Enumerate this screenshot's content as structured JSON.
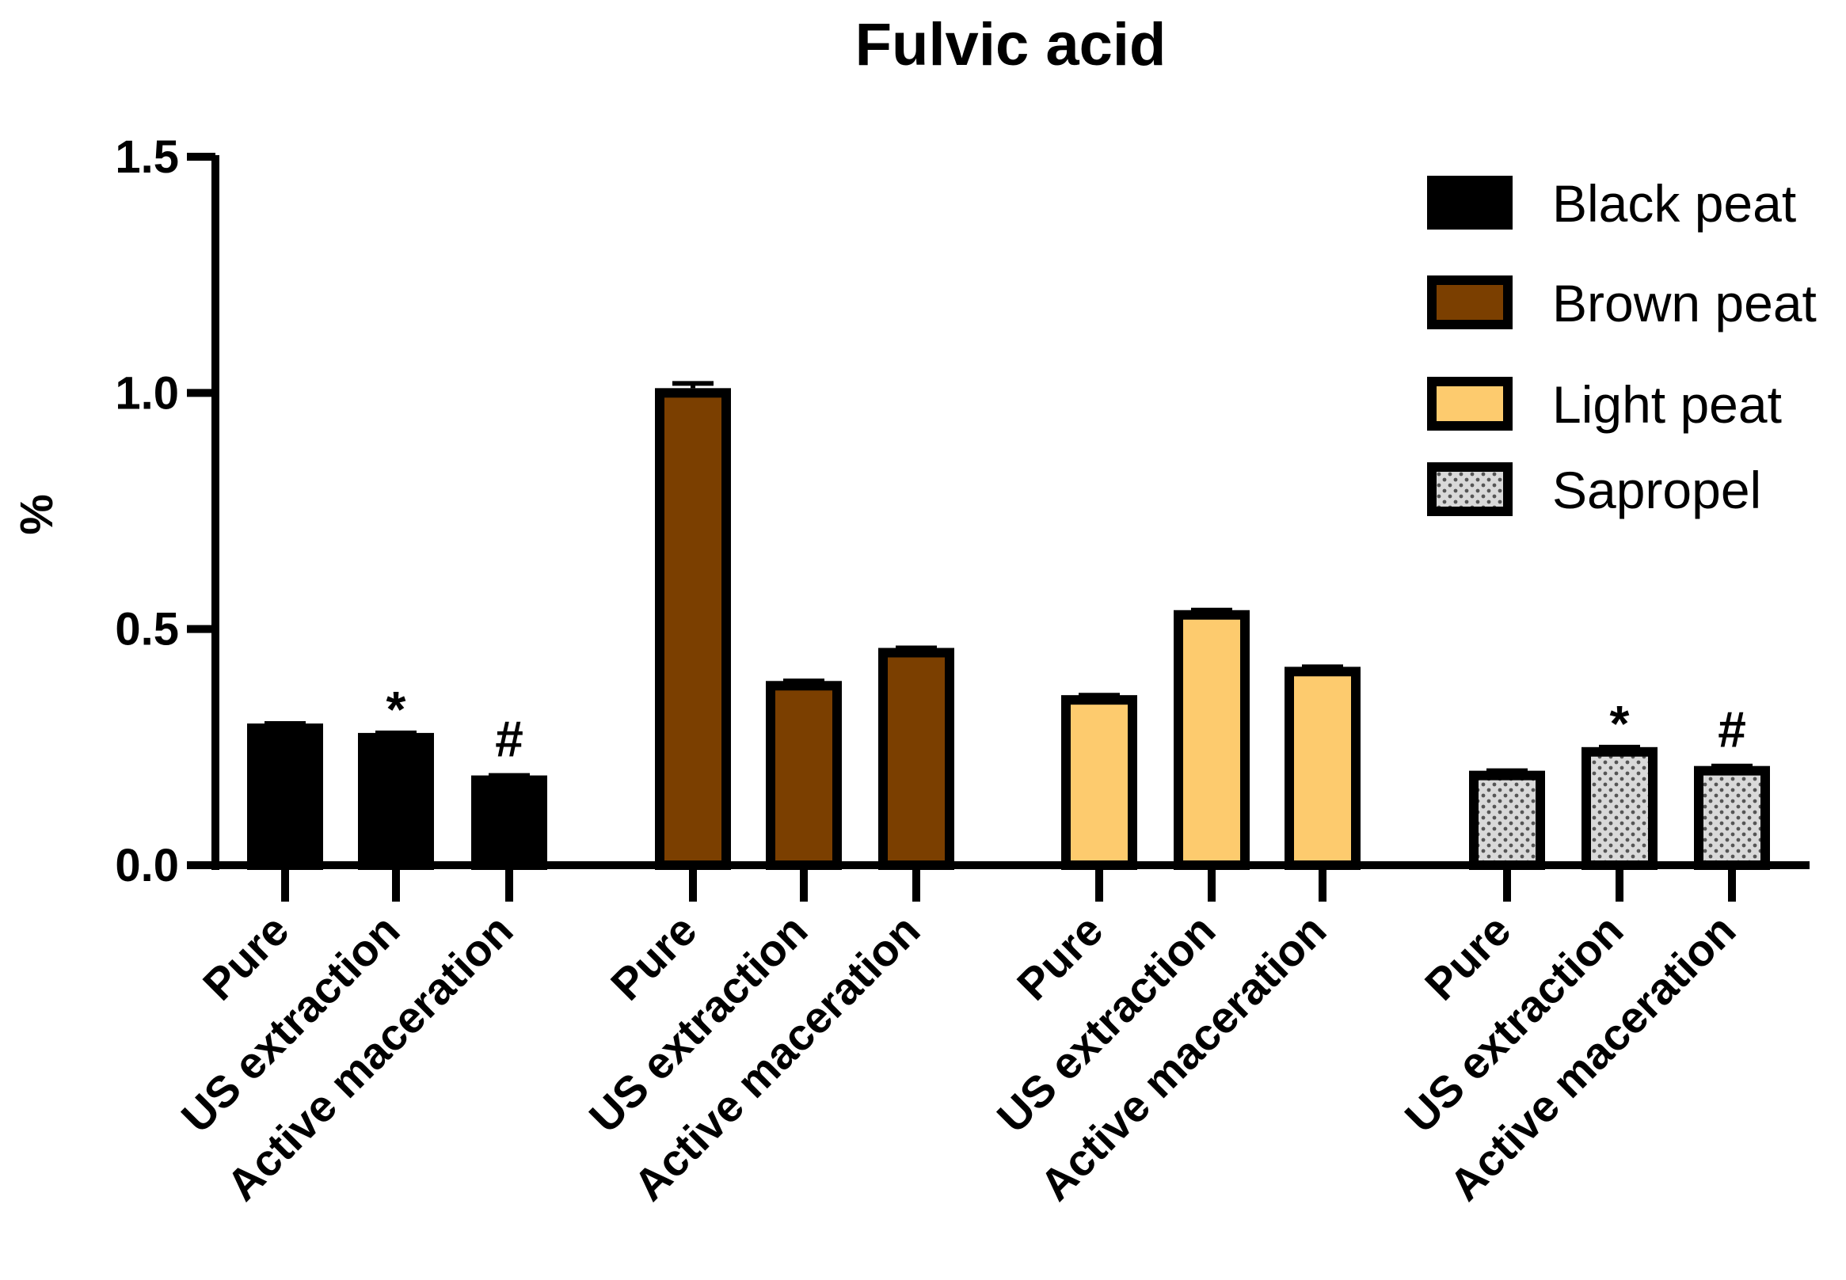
{
  "chart_data": {
    "type": "bar",
    "title": "Fulvic acid",
    "ylabel": "%",
    "xlabel": "",
    "ylim": [
      0,
      1.5
    ],
    "yticks": [
      "0.0",
      "0.5",
      "1.0",
      "1.5"
    ],
    "ytick_values": [
      0,
      0.5,
      1.0,
      1.5
    ],
    "legend_position": "top-right",
    "categories": [
      "Pure",
      "US extraction",
      "Active maceration"
    ],
    "series": [
      {
        "name": "Black peat",
        "color": "#000000",
        "pattern": "solid",
        "values": [
          0.29,
          0.27,
          0.18
        ],
        "errors": [
          0.01,
          0.01,
          0.01
        ],
        "annotations": [
          "",
          "*",
          "#"
        ]
      },
      {
        "name": "Brown peat",
        "color": "#7B3F00",
        "pattern": "solid",
        "values": [
          1.0,
          0.38,
          0.45
        ],
        "errors": [
          0.02,
          0.01,
          0.01
        ],
        "annotations": [
          "",
          "",
          ""
        ]
      },
      {
        "name": "Light peat",
        "color": "#FDCB6E",
        "pattern": "solid",
        "values": [
          0.35,
          0.53,
          0.41
        ],
        "errors": [
          0.01,
          0.01,
          0.01
        ],
        "annotations": [
          "",
          "",
          ""
        ]
      },
      {
        "name": "Sapropel",
        "color": "#D9D9D9",
        "pattern": "dotted",
        "values": [
          0.19,
          0.24,
          0.2
        ],
        "errors": [
          0.01,
          0.01,
          0.01
        ],
        "annotations": [
          "",
          "*",
          "#"
        ]
      }
    ]
  }
}
